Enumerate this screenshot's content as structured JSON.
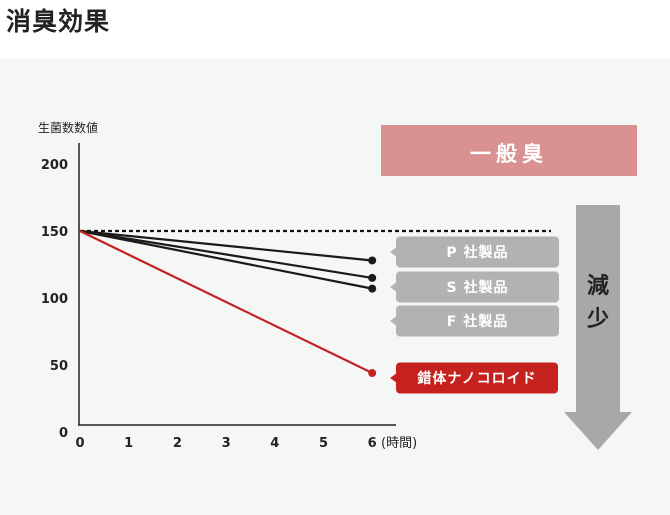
{
  "page": {
    "title": "消臭効果"
  },
  "chart_data": {
    "type": "line",
    "ylabel": "生菌数数値",
    "x_unit": "(時間)",
    "x": [
      0,
      6
    ],
    "xticks": [
      0,
      1,
      2,
      3,
      4,
      5,
      6
    ],
    "yticks": [
      0,
      50,
      100,
      150,
      200
    ],
    "xlim": [
      0,
      6.6
    ],
    "ylim": [
      0,
      200
    ],
    "reference": {
      "name": "一般臭",
      "value": 150,
      "style": "dashed"
    },
    "series": [
      {
        "name": "P 社製品",
        "values": [
          150,
          128
        ],
        "color": "#1a1a1a",
        "label_bg": "#b2b2b2"
      },
      {
        "name": "S 社製品",
        "values": [
          150,
          115
        ],
        "color": "#1a1a1a",
        "label_bg": "#b2b2b2"
      },
      {
        "name": "F 社製品",
        "values": [
          150,
          107
        ],
        "color": "#1a1a1a",
        "label_bg": "#b2b2b2"
      },
      {
        "name": "錯体ナノコロイド",
        "values": [
          150,
          44
        ],
        "color": "#c5221f",
        "label_bg": "#c5221f"
      }
    ],
    "annotation": {
      "banner": "一般臭",
      "arrow_label": [
        "減",
        "少"
      ]
    },
    "colors": {
      "banner": "#d99191",
      "arrow": "#a8a8a8",
      "accent": "#c5221f"
    }
  }
}
